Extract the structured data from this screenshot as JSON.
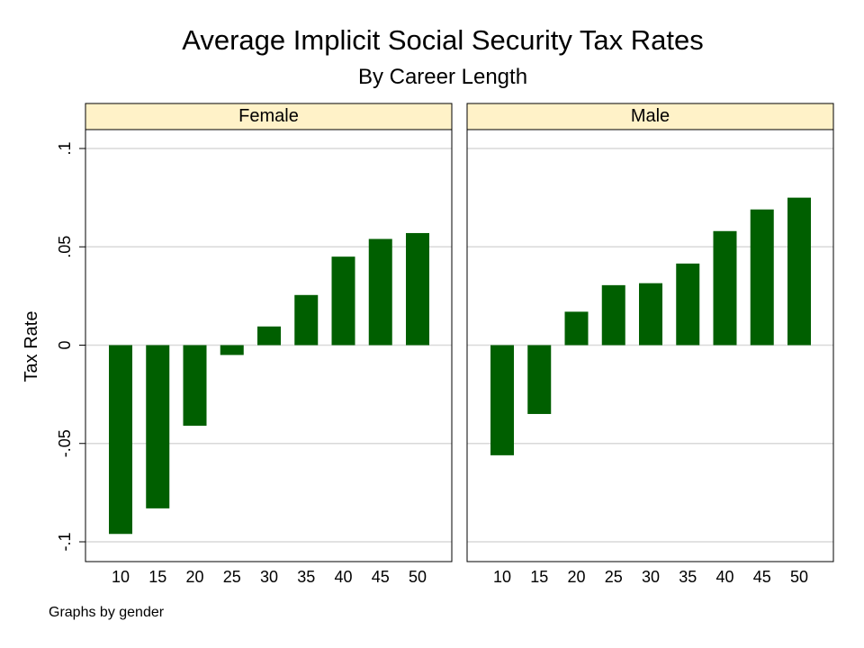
{
  "chart_data": {
    "type": "bar",
    "title": "Average Implicit Social Security Tax Rates",
    "subtitle": "By Career Length",
    "ylabel": "Tax Rate",
    "note": "Graphs by gender",
    "ylim": [
      -0.11,
      0.11
    ],
    "yticks": [
      -0.1,
      -0.05,
      0,
      0.05,
      0.1
    ],
    "ytick_labels": [
      "-.1",
      "-.05",
      "0",
      ".05",
      ".1"
    ],
    "categories": [
      "10",
      "15",
      "20",
      "25",
      "30",
      "35",
      "40",
      "45",
      "50"
    ],
    "grid": true,
    "panels": [
      {
        "name": "Female",
        "values": [
          -0.096,
          -0.083,
          -0.041,
          -0.005,
          0.0095,
          0.0255,
          0.045,
          0.054,
          0.057
        ]
      },
      {
        "name": "Male",
        "values": [
          -0.056,
          -0.035,
          0.017,
          0.0305,
          0.0315,
          0.0415,
          0.058,
          0.069,
          0.075
        ]
      }
    ]
  },
  "colors": {
    "bar": "#005f00",
    "strip": "#fff2c8",
    "grid": "#d9d9d9",
    "frame": "#000000"
  }
}
